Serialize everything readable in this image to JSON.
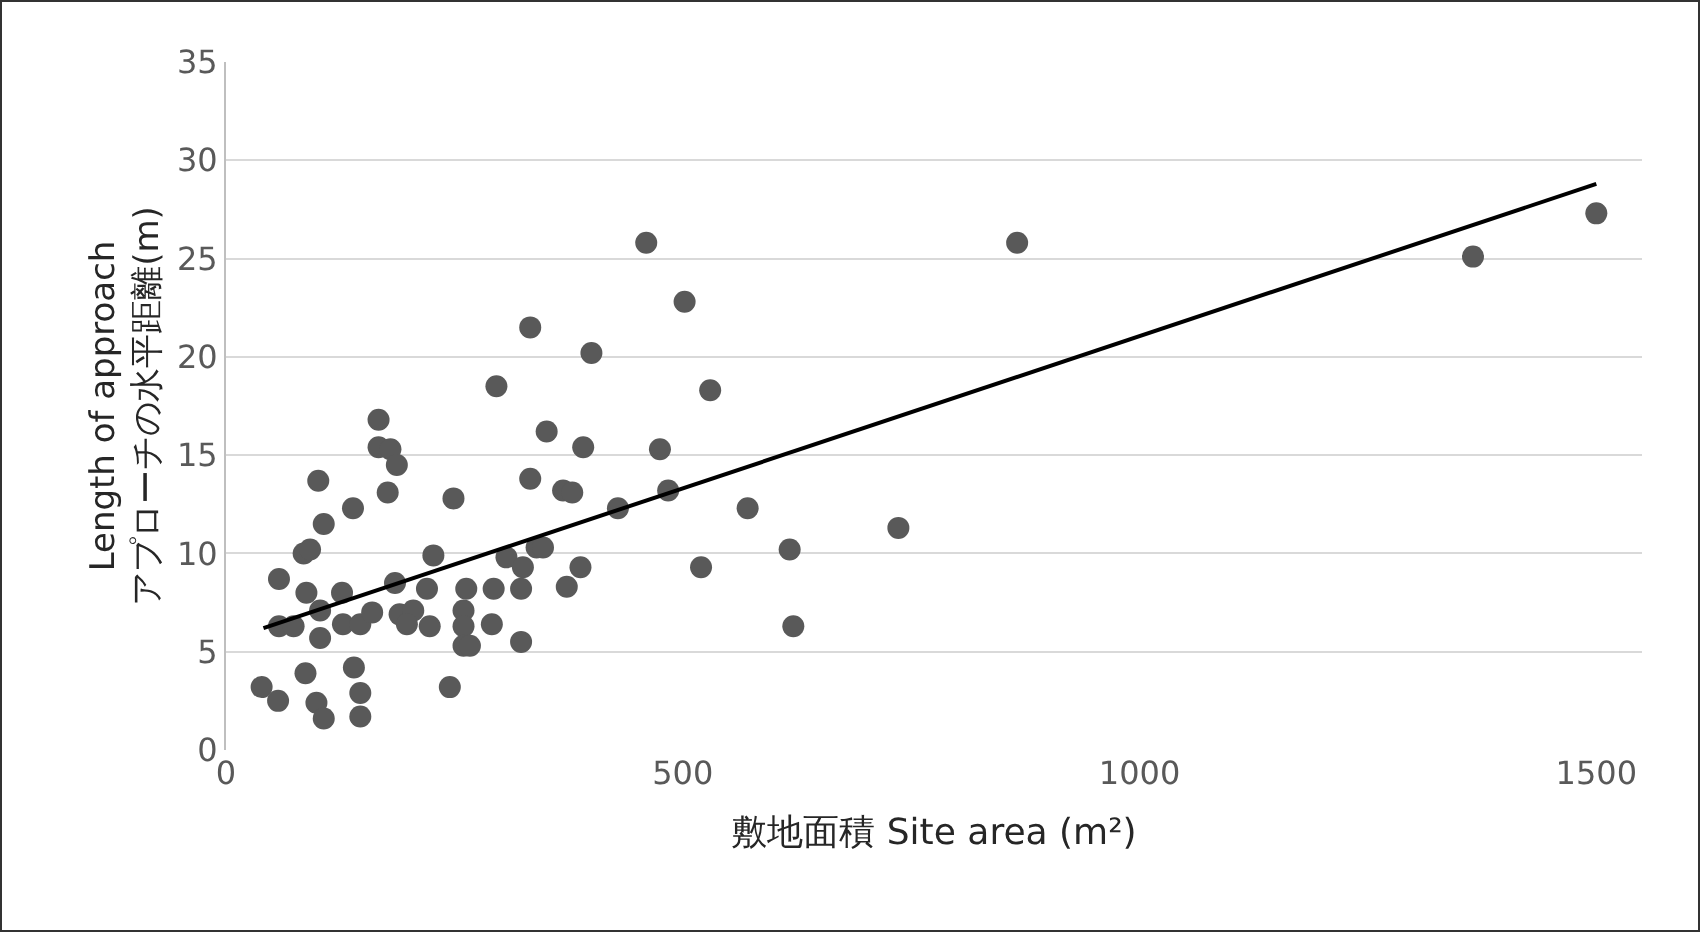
{
  "chart_data": {
    "type": "scatter",
    "xlabel": "敷地面積 Site area (m²)",
    "ylabel": "Length of approach\nアプローチの水平距離(m)",
    "xlim": [
      0,
      1550
    ],
    "xticks": [
      0,
      500,
      1000,
      1500
    ],
    "ylim": [
      0,
      35
    ],
    "yticks": [
      0,
      5,
      10,
      15,
      20,
      25,
      30,
      35
    ],
    "grid": "y",
    "series": [
      {
        "marker": "circle",
        "color": "#595959",
        "x": [
          39,
          57,
          58,
          85,
          92,
          88,
          58,
          74,
          101,
          107,
          139,
          87,
          99,
          107,
          103,
          103,
          127,
          128,
          147,
          160,
          140,
          147,
          147,
          167,
          167,
          180,
          187,
          177,
          185,
          190,
          205,
          198,
          223,
          220,
          227,
          296,
          249,
          245,
          263,
          260,
          260,
          260,
          267,
          293,
          291,
          307,
          325,
          323,
          323,
          340,
          347,
          333,
          351,
          369,
          379,
          373,
          388,
          391,
          400,
          460,
          866,
          333,
          502,
          530,
          475,
          484,
          429,
          571,
          736,
          617,
          520,
          621,
          1365,
          1500
        ],
        "values": [
          3.2,
          2.5,
          8.7,
          10.0,
          10.2,
          8.0,
          6.3,
          6.3,
          13.7,
          11.5,
          12.3,
          3.9,
          2.4,
          1.6,
          5.7,
          7.1,
          8.0,
          6.4,
          6.4,
          7.0,
          4.2,
          2.9,
          1.7,
          16.8,
          15.4,
          15.3,
          14.5,
          13.1,
          8.5,
          6.9,
          7.1,
          6.4,
          6.3,
          8.2,
          9.9,
          18.5,
          12.8,
          3.2,
          8.2,
          7.1,
          6.3,
          5.3,
          5.3,
          8.2,
          6.4,
          9.8,
          9.3,
          8.2,
          5.5,
          10.3,
          10.3,
          13.8,
          16.2,
          13.2,
          13.1,
          8.3,
          9.3,
          15.4,
          20.2,
          25.8,
          25.8,
          21.5,
          22.8,
          18.3,
          15.3,
          13.2,
          12.3,
          12.3,
          11.3,
          10.2,
          9.3,
          6.3,
          25.1,
          27.3
        ]
      },
      {
        "type": "line",
        "marker": "none",
        "color": "#000000",
        "x": [
          41,
          1500
        ],
        "values": [
          6.2,
          28.8
        ]
      }
    ]
  }
}
